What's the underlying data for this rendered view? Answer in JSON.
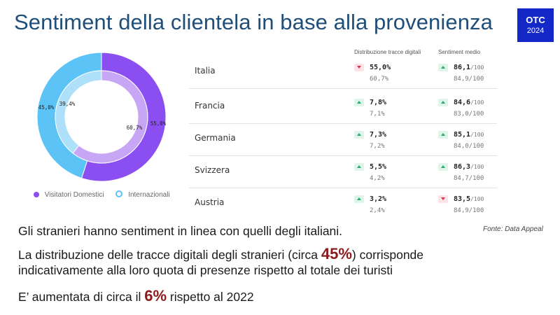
{
  "header": {
    "title": "Sentiment della clientela in base alla provenienza",
    "badge_line1": "OTC",
    "badge_line2": "2024"
  },
  "colors": {
    "domestic": "#8b4ef0",
    "domestic_inner": "#c8a6f6",
    "international": "#5bc3f5",
    "international_inner": "#aee0fa",
    "title": "#1f4e79",
    "badge": "#1428c8",
    "highlight": "#8b1a1a"
  },
  "chart_data": {
    "type": "donut",
    "rings": [
      {
        "ring": "outer",
        "values": [
          {
            "label": "Visitatori Domestici",
            "value": 55.0,
            "text": "55,0%"
          },
          {
            "label": "Internazionali",
            "value": 45.0,
            "text": "45,0%"
          }
        ]
      },
      {
        "ring": "inner",
        "values": [
          {
            "label": "Visitatori Domestici",
            "value": 60.7,
            "text": "60,7%"
          },
          {
            "label": "Internazionali",
            "value": 39.4,
            "text": "39,4%"
          }
        ]
      }
    ],
    "legend": [
      {
        "label": "Visitatori Domestici",
        "icon": "filled-dot"
      },
      {
        "label": "Internazionali",
        "icon": "ring-dot"
      }
    ]
  },
  "table": {
    "col_distribution": "Distribuzione tracce digitali",
    "col_sentiment": "Sentiment medio",
    "rows": [
      {
        "country": "Italia",
        "dist_dir": "down",
        "dist": "55,0%",
        "dist_prev": "60,7%",
        "sent_dir": "up",
        "sent": "86,1",
        "sent_unit": "/100",
        "sent_prev": "84,9/100"
      },
      {
        "country": "Francia",
        "dist_dir": "up",
        "dist": "7,8%",
        "dist_prev": "7,1%",
        "sent_dir": "up",
        "sent": "84,6",
        "sent_unit": "/100",
        "sent_prev": "83,0/100"
      },
      {
        "country": "Germania",
        "dist_dir": "up",
        "dist": "7,3%",
        "dist_prev": "7,2%",
        "sent_dir": "up",
        "sent": "85,1",
        "sent_unit": "/100",
        "sent_prev": "84,0/100"
      },
      {
        "country": "Svizzera",
        "dist_dir": "up",
        "dist": "5,5%",
        "dist_prev": "4,2%",
        "sent_dir": "up",
        "sent": "86,3",
        "sent_unit": "/100",
        "sent_prev": "84,7/100"
      },
      {
        "country": "Austria",
        "dist_dir": "up",
        "dist": "3,2%",
        "dist_prev": "2,4%",
        "sent_dir": "down",
        "sent": "83,5",
        "sent_unit": "/100",
        "sent_prev": "84,9/100"
      }
    ]
  },
  "source": "Fonte: Data Appeal",
  "body": {
    "line1": "Gli  stranieri hanno sentiment in linea con quelli degli italiani.",
    "line2_a": "La distribuzione delle tracce digitali degli stranieri (circa ",
    "line2_big": "45%",
    "line2_b": ") corrisponde",
    "line3": "indicativamente alla loro quota di presenze rispetto al totale dei turisti",
    "line4_a": "E’ aumentata di circa il ",
    "line4_big": "6%",
    "line4_b": " rispetto al 2022"
  }
}
